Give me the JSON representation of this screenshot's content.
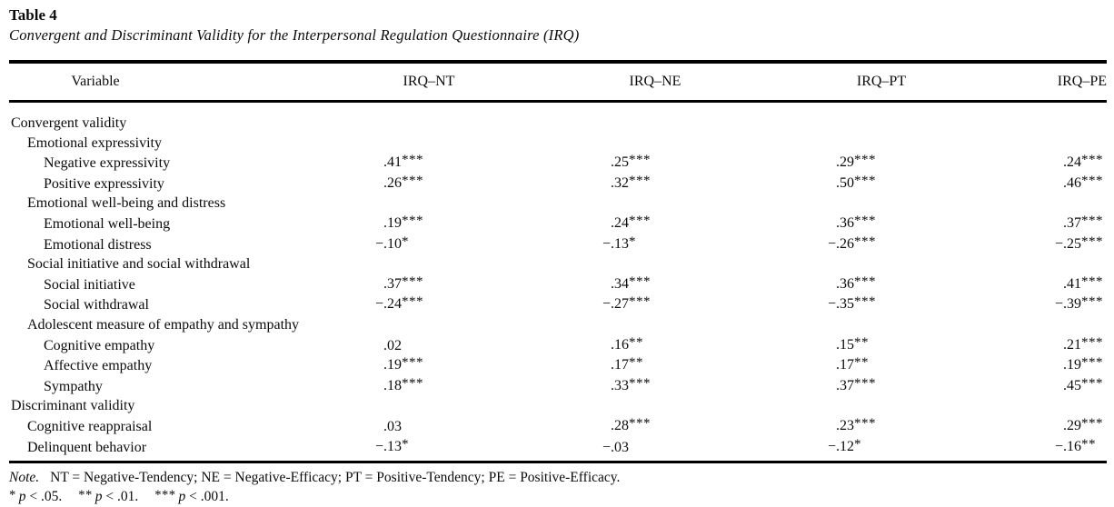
{
  "page": {
    "table_label": "Table 4",
    "table_caption": "Convergent and Discriminant Validity for the Interpersonal Regulation Questionnaire (IRQ)"
  },
  "table": {
    "columns": [
      "Variable",
      "IRQ–NT",
      "IRQ–NE",
      "IRQ–PT",
      "IRQ–PE"
    ],
    "rows": [
      {
        "label": "Convergent validity",
        "indent": 0,
        "values": null
      },
      {
        "label": "Emotional expressivity",
        "indent": 1,
        "values": null
      },
      {
        "label": "Negative expressivity",
        "indent": 2,
        "values": [
          {
            "v": ".41",
            "s": "***"
          },
          {
            "v": ".25",
            "s": "***"
          },
          {
            "v": ".29",
            "s": "***"
          },
          {
            "v": ".24",
            "s": "***"
          }
        ]
      },
      {
        "label": "Positive expressivity",
        "indent": 2,
        "values": [
          {
            "v": ".26",
            "s": "***"
          },
          {
            "v": ".32",
            "s": "***"
          },
          {
            "v": ".50",
            "s": "***"
          },
          {
            "v": ".46",
            "s": "***"
          }
        ]
      },
      {
        "label": "Emotional well-being and distress",
        "indent": 1,
        "values": null
      },
      {
        "label": "Emotional well-being",
        "indent": 2,
        "values": [
          {
            "v": ".19",
            "s": "***"
          },
          {
            "v": ".24",
            "s": "***"
          },
          {
            "v": ".36",
            "s": "***"
          },
          {
            "v": ".37",
            "s": "***"
          }
        ]
      },
      {
        "label": "Emotional distress",
        "indent": 2,
        "values": [
          {
            "v": "−.10",
            "s": "*"
          },
          {
            "v": "−.13",
            "s": "*"
          },
          {
            "v": "−.26",
            "s": "***"
          },
          {
            "v": "−.25",
            "s": "***"
          }
        ]
      },
      {
        "label": "Social initiative and social withdrawal",
        "indent": 1,
        "values": null
      },
      {
        "label": "Social initiative",
        "indent": 2,
        "values": [
          {
            "v": ".37",
            "s": "***"
          },
          {
            "v": ".34",
            "s": "***"
          },
          {
            "v": ".36",
            "s": "***"
          },
          {
            "v": ".41",
            "s": "***"
          }
        ]
      },
      {
        "label": "Social withdrawal",
        "indent": 2,
        "values": [
          {
            "v": "−.24",
            "s": "***"
          },
          {
            "v": "−.27",
            "s": "***"
          },
          {
            "v": "−.35",
            "s": "***"
          },
          {
            "v": "−.39",
            "s": "***"
          }
        ]
      },
      {
        "label": "Adolescent measure of empathy and sympathy",
        "indent": 1,
        "values": null
      },
      {
        "label": "Cognitive empathy",
        "indent": 2,
        "values": [
          {
            "v": ".02",
            "s": ""
          },
          {
            "v": ".16",
            "s": "**"
          },
          {
            "v": ".15",
            "s": "**"
          },
          {
            "v": ".21",
            "s": "***"
          }
        ]
      },
      {
        "label": "Affective empathy",
        "indent": 2,
        "values": [
          {
            "v": ".19",
            "s": "***"
          },
          {
            "v": ".17",
            "s": "**"
          },
          {
            "v": ".17",
            "s": "**"
          },
          {
            "v": ".19",
            "s": "***"
          }
        ]
      },
      {
        "label": "Sympathy",
        "indent": 2,
        "values": [
          {
            "v": ".18",
            "s": "***"
          },
          {
            "v": ".33",
            "s": "***"
          },
          {
            "v": ".37",
            "s": "***"
          },
          {
            "v": ".45",
            "s": "***"
          }
        ]
      },
      {
        "label": "Discriminant validity",
        "indent": 0,
        "values": null
      },
      {
        "label": "Cognitive reappraisal",
        "indent": 1,
        "values": [
          {
            "v": ".03",
            "s": ""
          },
          {
            "v": ".28",
            "s": "***"
          },
          {
            "v": ".23",
            "s": "***"
          },
          {
            "v": ".29",
            "s": "***"
          }
        ]
      },
      {
        "label": "Delinquent behavior",
        "indent": 1,
        "values": [
          {
            "v": "−.13",
            "s": "*"
          },
          {
            "v": "−.03",
            "s": ""
          },
          {
            "v": "−.12",
            "s": "*"
          },
          {
            "v": "−.16",
            "s": "**"
          }
        ]
      }
    ],
    "note_label": "Note.",
    "note_text": "NT = Negative-Tendency; NE = Negative-Efficacy; PT = Positive-Tendency; PE = Positive-Efficacy.",
    "significance": [
      {
        "stars": "*",
        "var": "p",
        "comparison": "< .05."
      },
      {
        "stars": "**",
        "var": "p",
        "comparison": "< .01."
      },
      {
        "stars": "***",
        "var": "p",
        "comparison": "< .001."
      }
    ]
  }
}
